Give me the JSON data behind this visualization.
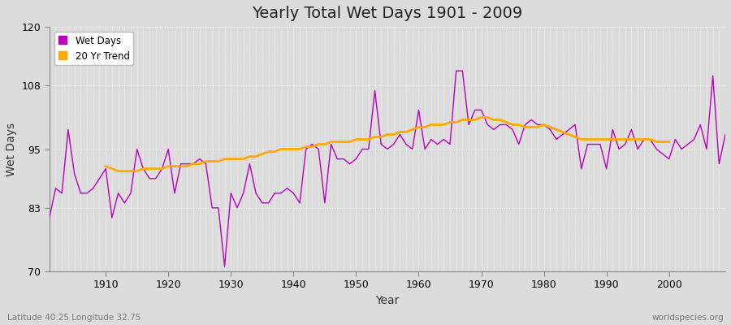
{
  "title": "Yearly Total Wet Days 1901 - 2009",
  "xlabel": "Year",
  "ylabel": "Wet Days",
  "subtitle_left": "Latitude 40.25 Longitude 32.75",
  "subtitle_right": "worldspecies.org",
  "ylim": [
    70,
    120
  ],
  "yticks": [
    70,
    83,
    95,
    108,
    120
  ],
  "xticks": [
    1910,
    1920,
    1930,
    1940,
    1950,
    1960,
    1970,
    1980,
    1990,
    2000
  ],
  "wet_days_color": "#bb00bb",
  "trend_color": "#ffaa00",
  "background_color": "#dcdcdc",
  "plot_bg_color": "#dcdcdc",
  "grid_color": "#ffffff",
  "years": [
    1901,
    1902,
    1903,
    1904,
    1905,
    1906,
    1907,
    1908,
    1909,
    1910,
    1911,
    1912,
    1913,
    1914,
    1915,
    1916,
    1917,
    1918,
    1919,
    1920,
    1921,
    1922,
    1923,
    1924,
    1925,
    1926,
    1927,
    1928,
    1929,
    1930,
    1931,
    1932,
    1933,
    1934,
    1935,
    1936,
    1937,
    1938,
    1939,
    1940,
    1941,
    1942,
    1943,
    1944,
    1945,
    1946,
    1947,
    1948,
    1949,
    1950,
    1951,
    1952,
    1953,
    1954,
    1955,
    1956,
    1957,
    1958,
    1959,
    1960,
    1961,
    1962,
    1963,
    1964,
    1965,
    1966,
    1967,
    1968,
    1969,
    1970,
    1971,
    1972,
    1973,
    1974,
    1975,
    1976,
    1977,
    1978,
    1979,
    1980,
    1981,
    1982,
    1983,
    1984,
    1985,
    1986,
    1987,
    1988,
    1989,
    1990,
    1991,
    1992,
    1993,
    1994,
    1995,
    1996,
    1997,
    1998,
    1999,
    2000,
    2001,
    2002,
    2003,
    2004,
    2005,
    2006,
    2007,
    2008,
    2009
  ],
  "wet_days": [
    81,
    87,
    86,
    99,
    90,
    86,
    86,
    87,
    89,
    91,
    81,
    86,
    84,
    86,
    95,
    91,
    89,
    89,
    91,
    95,
    86,
    92,
    92,
    92,
    93,
    92,
    83,
    83,
    71,
    86,
    83,
    86,
    92,
    86,
    84,
    84,
    86,
    86,
    87,
    86,
    84,
    95,
    96,
    95,
    84,
    96,
    93,
    93,
    92,
    93,
    95,
    95,
    107,
    96,
    95,
    96,
    98,
    96,
    95,
    103,
    95,
    97,
    96,
    97,
    96,
    111,
    111,
    100,
    103,
    103,
    100,
    99,
    100,
    100,
    99,
    96,
    100,
    101,
    100,
    100,
    99,
    97,
    98,
    99,
    100,
    91,
    96,
    96,
    96,
    91,
    99,
    95,
    96,
    99,
    95,
    97,
    97,
    95,
    94,
    93,
    97,
    95,
    96,
    97,
    100,
    95,
    110,
    92,
    98
  ],
  "trend_years": [
    1910,
    1911,
    1912,
    1913,
    1914,
    1915,
    1916,
    1917,
    1918,
    1919,
    1920,
    1921,
    1922,
    1923,
    1924,
    1925,
    1926,
    1927,
    1928,
    1929,
    1930,
    1931,
    1932,
    1933,
    1934,
    1935,
    1936,
    1937,
    1938,
    1939,
    1940,
    1941,
    1942,
    1943,
    1944,
    1945,
    1946,
    1947,
    1948,
    1949,
    1950,
    1951,
    1952,
    1953,
    1954,
    1955,
    1956,
    1957,
    1958,
    1959,
    1960,
    1961,
    1962,
    1963,
    1964,
    1965,
    1966,
    1967,
    1968,
    1969,
    1970,
    1971,
    1972,
    1973,
    1974,
    1975,
    1976,
    1977,
    1978,
    1979,
    1980,
    1981,
    1982,
    1983,
    1984,
    1985,
    1986,
    1987,
    1988,
    1989,
    1990,
    1991,
    1992,
    1993,
    1994,
    1995,
    1996,
    1997,
    1998,
    1999,
    2000
  ],
  "trend_vals": [
    91.5,
    91.0,
    90.5,
    90.5,
    90.5,
    90.5,
    91.0,
    91.0,
    91.0,
    91.0,
    91.5,
    91.5,
    91.5,
    91.5,
    92.0,
    92.0,
    92.5,
    92.5,
    92.5,
    93.0,
    93.0,
    93.0,
    93.0,
    93.5,
    93.5,
    94.0,
    94.5,
    94.5,
    95.0,
    95.0,
    95.0,
    95.0,
    95.5,
    95.5,
    96.0,
    96.0,
    96.5,
    96.5,
    96.5,
    96.5,
    97.0,
    97.0,
    97.0,
    97.5,
    97.5,
    98.0,
    98.0,
    98.5,
    98.5,
    99.0,
    99.5,
    99.5,
    100.0,
    100.0,
    100.0,
    100.5,
    100.5,
    101.0,
    101.0,
    101.0,
    101.5,
    101.5,
    101.0,
    101.0,
    100.5,
    100.0,
    100.0,
    99.5,
    99.5,
    99.5,
    100.0,
    99.5,
    99.0,
    98.5,
    98.0,
    97.5,
    97.0,
    97.0,
    97.0,
    97.0,
    97.0,
    97.0,
    97.0,
    97.0,
    97.0,
    97.0,
    97.0,
    97.0,
    96.5,
    96.5,
    96.5
  ]
}
